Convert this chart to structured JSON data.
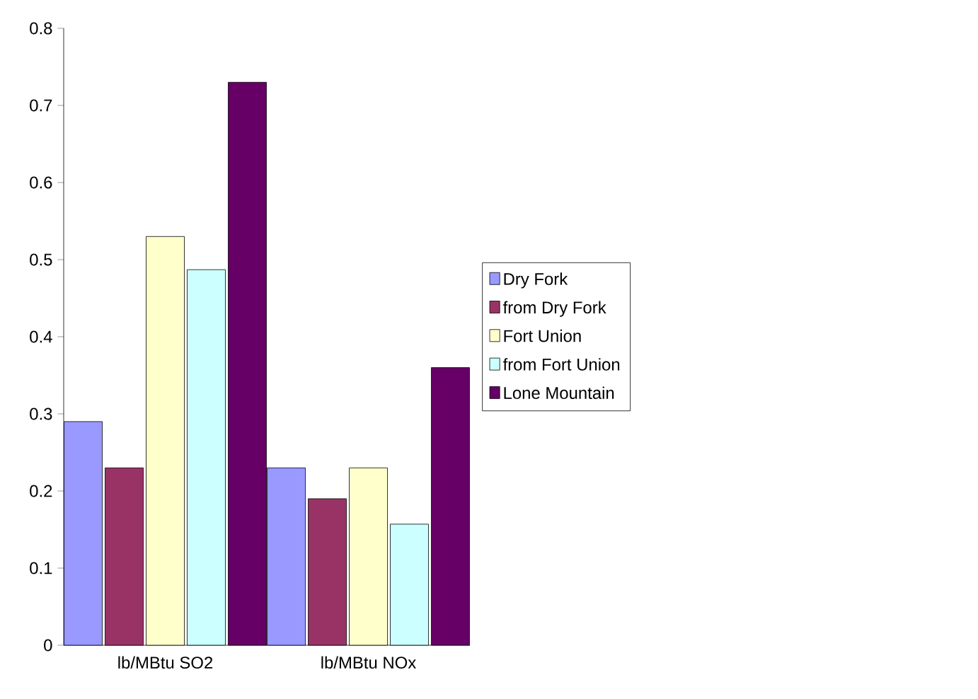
{
  "chart_data": {
    "type": "bar",
    "categories": [
      "lb/MBtu SO2",
      "lb/MBtu NOx"
    ],
    "series": [
      {
        "name": "Dry Fork",
        "color": "#9999ff",
        "values": [
          0.29,
          0.23
        ]
      },
      {
        "name": "from Dry Fork",
        "color": "#993366",
        "values": [
          0.23,
          0.19
        ]
      },
      {
        "name": "Fort Union",
        "color": "#ffffcc",
        "values": [
          0.53,
          0.23
        ]
      },
      {
        "name": "from Fort Union",
        "color": "#ccffff",
        "values": [
          0.487,
          0.157
        ]
      },
      {
        "name": "Lone Mountain",
        "color": "#660066",
        "values": [
          0.73,
          0.36
        ]
      }
    ],
    "ylim": [
      0,
      0.8
    ],
    "yticks": [
      0,
      0.1,
      0.2,
      0.3,
      0.4,
      0.5,
      0.6,
      0.7,
      0.8
    ],
    "grid": false,
    "legend": "right"
  }
}
